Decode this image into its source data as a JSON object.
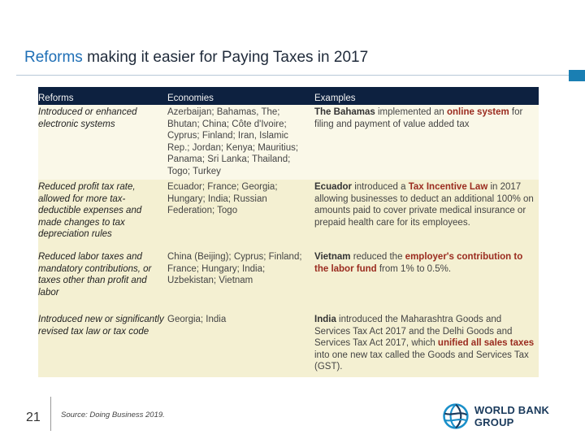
{
  "title": {
    "accent": "Reforms",
    "rest": " making it easier for Paying Taxes in 2017"
  },
  "table": {
    "headers": [
      "Reforms",
      "Economies",
      "Examples"
    ],
    "rows": [
      {
        "reform": "Introduced or enhanced electronic systems",
        "economies": "Azerbaijan; Bahamas, The; Bhutan; China; Côte d'Ivoire; Cyprus; Finland; Iran, Islamic Rep.; Jordan; Kenya; Mauritius; Panama; Sri Lanka; Thailand; Togo; Turkey",
        "ex_a": "The Bahamas",
        "ex_b": " implemented an ",
        "ex_c": "online system",
        "ex_d": " for filing and payment of value added tax"
      },
      {
        "reform": "Reduced profit tax rate, allowed for more tax-deductible expenses and made changes to tax depreciation rules",
        "economies": "Ecuador; France; Georgia; Hungary; India; Russian Federation; Togo",
        "ex_a": "Ecuador",
        "ex_b": " introduced a ",
        "ex_c": "Tax Incentive Law",
        "ex_d": " in 2017 allowing businesses to deduct an additional 100% on amounts paid to cover private medical insurance or prepaid health care for its employees."
      },
      {
        "reform": "Reduced labor taxes and mandatory contributions, or taxes other than profit and labor",
        "economies": "China (Beijing); Cyprus; Finland; France; Hungary; India; Uzbekistan; Vietnam",
        "ex_a": "Vietnam",
        "ex_b": " reduced the ",
        "ex_c": "employer's contribution to the labor fund",
        "ex_d": " from 1% to 0.5%."
      },
      {
        "reform": "Introduced new or significantly revised tax law or tax code",
        "economies": "Georgia; India",
        "ex_a": "India",
        "ex_b": " introduced the Maharashtra Goods and Services Tax Act 2017 and the Delhi Goods and Services Tax Act 2017, which ",
        "ex_c": "unified all sales taxes",
        "ex_d": " into one new tax called the Goods and Services Tax (GST)."
      }
    ]
  },
  "footer": {
    "page_number": "21",
    "source": "Source: Doing Business 2019.",
    "logo_text": "WORLD BANK GROUP"
  },
  "colors": {
    "header_band": "#0d2140",
    "row_bg": "#f4f0d2",
    "highlight": "#9a2b1f",
    "title_accent": "#1f6fb6"
  }
}
